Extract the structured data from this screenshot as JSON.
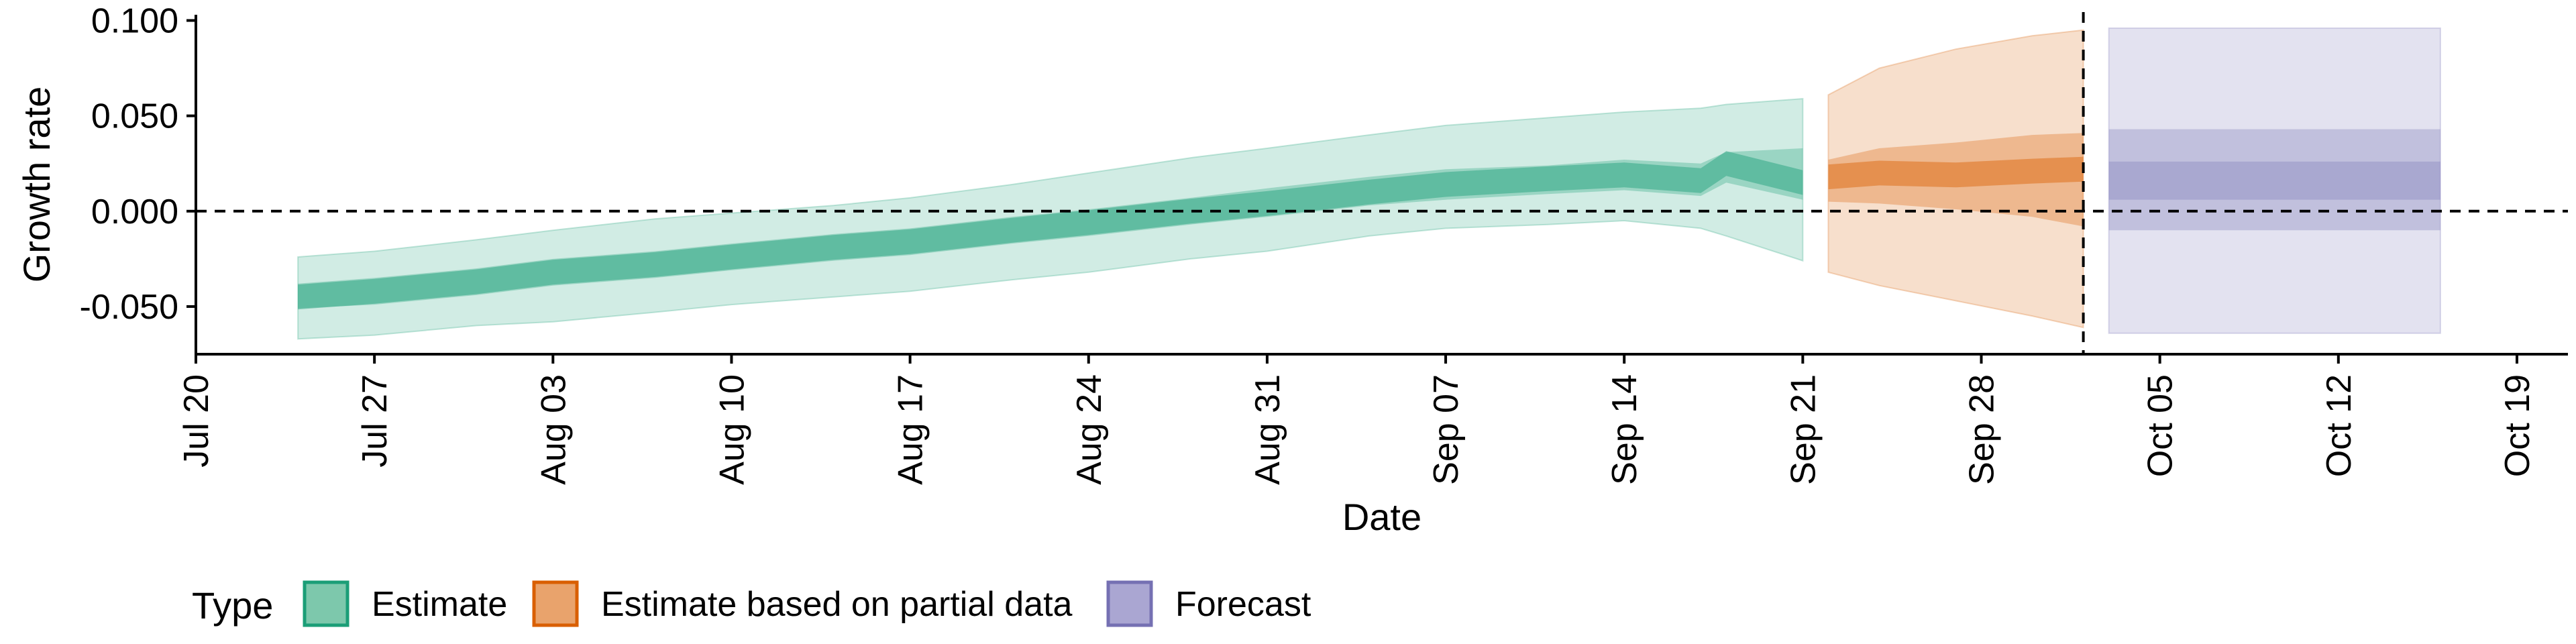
{
  "chart_data": {
    "type": "area",
    "xlabel": "Date",
    "ylabel": "Growth rate",
    "x_ticks": [
      {
        "date": "2020-07-20",
        "label": "Jul 20"
      },
      {
        "date": "2020-07-27",
        "label": "Jul 27"
      },
      {
        "date": "2020-08-03",
        "label": "Aug 03"
      },
      {
        "date": "2020-08-10",
        "label": "Aug 10"
      },
      {
        "date": "2020-08-17",
        "label": "Aug 17"
      },
      {
        "date": "2020-08-24",
        "label": "Aug 24"
      },
      {
        "date": "2020-08-31",
        "label": "Aug 31"
      },
      {
        "date": "2020-09-07",
        "label": "Sep 07"
      },
      {
        "date": "2020-09-14",
        "label": "Sep 14"
      },
      {
        "date": "2020-09-21",
        "label": "Sep 21"
      },
      {
        "date": "2020-09-28",
        "label": "Sep 28"
      },
      {
        "date": "2020-10-05",
        "label": "Oct 05"
      },
      {
        "date": "2020-10-12",
        "label": "Oct 12"
      },
      {
        "date": "2020-10-19",
        "label": "Oct 19"
      }
    ],
    "y_ticks": [
      {
        "value": -0.05,
        "label": "-0.050"
      },
      {
        "value": 0.0,
        "label": "0.000"
      },
      {
        "value": 0.05,
        "label": "0.050"
      },
      {
        "value": 0.1,
        "label": "0.100"
      }
    ],
    "xlim": [
      "2020-07-20",
      "2020-10-21"
    ],
    "ylim": [
      -0.075,
      0.103
    ],
    "grid": false,
    "reference_lines": {
      "horizontal_y": 0.0,
      "vertical_date": "2020-10-02"
    },
    "legend": {
      "title": "Type",
      "position": "bottom-left",
      "items": [
        {
          "label": "Estimate",
          "fill": "#7dc8ac",
          "stroke": "#1b9e77"
        },
        {
          "label": "Estimate based on partial data",
          "fill": "#e9a36c",
          "stroke": "#d95f02"
        },
        {
          "label": "Forecast",
          "fill": "#aaa6d2",
          "stroke": "#7570b3"
        }
      ]
    },
    "series": [
      {
        "name": "Estimate",
        "color": "#1b9e77",
        "points": [
          {
            "x": "2020-07-24",
            "median": -0.045,
            "lower50": -0.051,
            "upper50": -0.038,
            "lower90": -0.067,
            "upper90": -0.024
          },
          {
            "x": "2020-07-27",
            "median": -0.042,
            "lower50": -0.049,
            "upper50": -0.035,
            "lower90": -0.065,
            "upper90": -0.021
          },
          {
            "x": "2020-07-31",
            "median": -0.037,
            "lower50": -0.044,
            "upper50": -0.03,
            "lower90": -0.06,
            "upper90": -0.015
          },
          {
            "x": "2020-08-03",
            "median": -0.032,
            "lower50": -0.039,
            "upper50": -0.025,
            "lower90": -0.058,
            "upper90": -0.01
          },
          {
            "x": "2020-08-07",
            "median": -0.028,
            "lower50": -0.035,
            "upper50": -0.021,
            "lower90": -0.053,
            "upper90": -0.004
          },
          {
            "x": "2020-08-10",
            "median": -0.024,
            "lower50": -0.031,
            "upper50": -0.017,
            "lower90": -0.049,
            "upper90": -0.001
          },
          {
            "x": "2020-08-14",
            "median": -0.019,
            "lower50": -0.026,
            "upper50": -0.012,
            "lower90": -0.045,
            "upper90": 0.003
          },
          {
            "x": "2020-08-17",
            "median": -0.016,
            "lower50": -0.023,
            "upper50": -0.009,
            "lower90": -0.042,
            "upper90": 0.007
          },
          {
            "x": "2020-08-21",
            "median": -0.01,
            "lower50": -0.017,
            "upper50": -0.003,
            "lower90": -0.036,
            "upper90": 0.014
          },
          {
            "x": "2020-08-24",
            "median": -0.006,
            "lower50": -0.013,
            "upper50": 0.001,
            "lower90": -0.032,
            "upper90": 0.02
          },
          {
            "x": "2020-08-28",
            "median": 0.0,
            "lower50": -0.007,
            "upper50": 0.007,
            "lower90": -0.025,
            "upper90": 0.028
          },
          {
            "x": "2020-08-31",
            "median": 0.004,
            "lower50": -0.003,
            "upper50": 0.012,
            "lower90": -0.021,
            "upper90": 0.033
          },
          {
            "x": "2020-09-04",
            "median": 0.01,
            "lower50": 0.003,
            "upper50": 0.018,
            "lower90": -0.013,
            "upper90": 0.04
          },
          {
            "x": "2020-09-07",
            "median": 0.014,
            "lower50": 0.006,
            "upper50": 0.022,
            "lower90": -0.009,
            "upper90": 0.045
          },
          {
            "x": "2020-09-11",
            "median": 0.017,
            "lower50": 0.009,
            "upper50": 0.024,
            "lower90": -0.007,
            "upper90": 0.049
          },
          {
            "x": "2020-09-14",
            "median": 0.019,
            "lower50": 0.011,
            "upper50": 0.027,
            "lower90": -0.005,
            "upper90": 0.052
          },
          {
            "x": "2020-09-17",
            "median": 0.016,
            "lower50": 0.008,
            "upper50": 0.025,
            "lower90": -0.009,
            "upper90": 0.054
          },
          {
            "x": "2020-09-18",
            "median": 0.025,
            "lower50": 0.015,
            "upper50": 0.031,
            "lower90": -0.013,
            "upper90": 0.056
          },
          {
            "x": "2020-09-21",
            "median": 0.015,
            "lower50": 0.006,
            "upper50": 0.033,
            "lower90": -0.026,
            "upper90": 0.059
          }
        ]
      },
      {
        "name": "Estimate based on partial data",
        "color": "#d95f02",
        "points": [
          {
            "x": "2020-09-22",
            "median": 0.018,
            "lower50": 0.005,
            "upper50": 0.027,
            "lower90": -0.032,
            "upper90": 0.061
          },
          {
            "x": "2020-09-24",
            "median": 0.02,
            "lower50": 0.004,
            "upper50": 0.033,
            "lower90": -0.039,
            "upper90": 0.075
          },
          {
            "x": "2020-09-27",
            "median": 0.019,
            "lower50": 0.001,
            "upper50": 0.036,
            "lower90": -0.047,
            "upper90": 0.085
          },
          {
            "x": "2020-09-30",
            "median": 0.021,
            "lower50": -0.003,
            "upper50": 0.04,
            "lower90": -0.055,
            "upper90": 0.092
          },
          {
            "x": "2020-10-02",
            "median": 0.022,
            "lower50": -0.008,
            "upper50": 0.041,
            "lower90": -0.061,
            "upper90": 0.095
          }
        ]
      },
      {
        "name": "Forecast",
        "color": "#7570b3",
        "points": [
          {
            "x": "2020-10-03",
            "median": 0.016,
            "lower20": 0.006,
            "upper20": 0.026,
            "lower50": -0.01,
            "upper50": 0.043,
            "lower90": -0.064,
            "upper90": 0.096
          },
          {
            "x": "2020-10-16",
            "median": 0.016,
            "lower20": 0.006,
            "upper20": 0.026,
            "lower50": -0.01,
            "upper50": 0.043,
            "lower90": -0.064,
            "upper90": 0.096
          }
        ]
      }
    ]
  }
}
